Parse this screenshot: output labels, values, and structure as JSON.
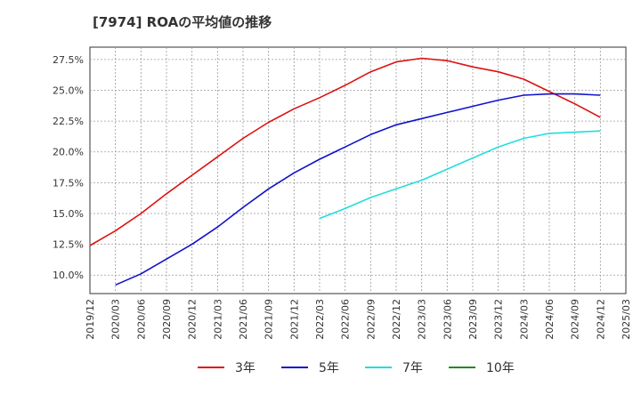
{
  "chart_data": {
    "type": "line",
    "title": "[7974]  ROAの平均値の推移",
    "x_ticks": [
      "2019/12",
      "2020/03",
      "2020/06",
      "2020/09",
      "2020/12",
      "2021/03",
      "2021/06",
      "2021/09",
      "2021/12",
      "2022/03",
      "2022/06",
      "2022/09",
      "2022/12",
      "2023/03",
      "2023/06",
      "2023/09",
      "2023/12",
      "2024/03",
      "2024/06",
      "2024/09",
      "2024/12",
      "2025/03"
    ],
    "y_ticks": [
      "10.0%",
      "12.5%",
      "15.0%",
      "17.5%",
      "20.0%",
      "22.5%",
      "25.0%",
      "27.5%"
    ],
    "y_tick_values": [
      10.0,
      12.5,
      15.0,
      17.5,
      20.0,
      22.5,
      25.0,
      27.5
    ],
    "ylim": [
      8.5,
      28.5
    ],
    "grid": true,
    "legend_position": "bottom",
    "series": [
      {
        "name": "3年",
        "color": "#dd1111",
        "x": [
          "2019/12",
          "2020/03",
          "2020/06",
          "2020/09",
          "2020/12",
          "2021/03",
          "2021/06",
          "2021/09",
          "2021/12",
          "2022/03",
          "2022/06",
          "2022/09",
          "2022/12",
          "2023/03",
          "2023/06",
          "2023/09",
          "2023/12",
          "2024/03",
          "2024/06",
          "2024/09",
          "2024/12"
        ],
        "values": [
          12.4,
          13.6,
          15.0,
          16.6,
          18.1,
          19.6,
          21.1,
          22.4,
          23.5,
          24.4,
          25.4,
          26.5,
          27.3,
          27.6,
          27.4,
          26.9,
          26.5,
          25.9,
          24.9,
          23.9,
          22.8
        ]
      },
      {
        "name": "5年",
        "color": "#1111cc",
        "x": [
          "2020/03",
          "2020/06",
          "2020/09",
          "2020/12",
          "2021/03",
          "2021/06",
          "2021/09",
          "2021/12",
          "2022/03",
          "2022/06",
          "2022/09",
          "2022/12",
          "2023/03",
          "2023/06",
          "2023/09",
          "2023/12",
          "2024/03",
          "2024/06",
          "2024/09",
          "2024/12"
        ],
        "values": [
          9.2,
          10.1,
          11.3,
          12.5,
          13.9,
          15.5,
          17.0,
          18.3,
          19.4,
          20.4,
          21.4,
          22.2,
          22.7,
          23.2,
          23.7,
          24.2,
          24.6,
          24.7,
          24.7,
          24.6
        ]
      },
      {
        "name": "7年",
        "color": "#22dddd",
        "x": [
          "2022/03",
          "2022/06",
          "2022/09",
          "2022/12",
          "2023/03",
          "2023/06",
          "2023/09",
          "2023/12",
          "2024/03",
          "2024/06",
          "2024/09",
          "2024/12"
        ],
        "values": [
          14.6,
          15.4,
          16.3,
          17.0,
          17.7,
          18.6,
          19.5,
          20.4,
          21.1,
          21.5,
          21.6,
          21.7
        ]
      },
      {
        "name": "10年",
        "color": "#228822",
        "x": [],
        "values": []
      }
    ]
  }
}
